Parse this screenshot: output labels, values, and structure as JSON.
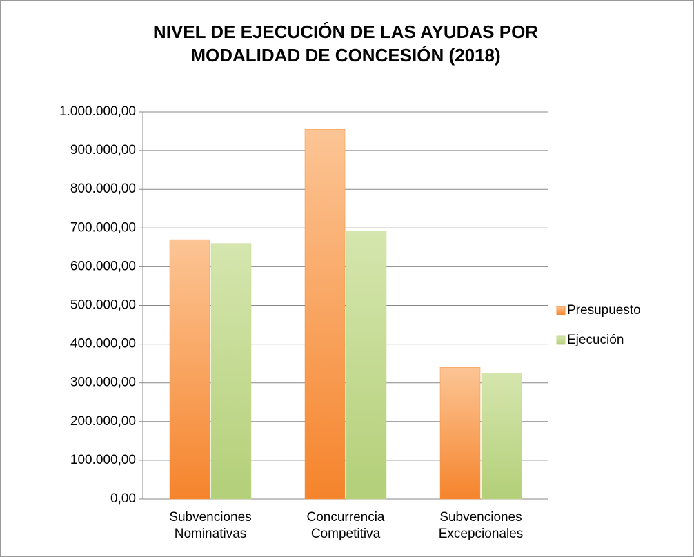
{
  "chart_data": {
    "type": "bar",
    "title": [
      "NIVEL DE EJECUCIÓN DE LAS AYUDAS POR",
      "MODALIDAD DE CONCESIÓN (2018)"
    ],
    "categories": [
      "Subvenciones Nominativas",
      "Concurrencia Competitiva",
      "Subvenciones Excepcionales"
    ],
    "series": [
      {
        "name": "Presupuesto",
        "color": "#f7923f",
        "values": [
          670000,
          955000,
          340000
        ]
      },
      {
        "name": "Ejecución",
        "color": "#c3d98e",
        "values": [
          660000,
          692000,
          325000
        ]
      }
    ],
    "ylim": [
      0,
      1000000
    ],
    "yticks": [
      {
        "value": 0,
        "label": "0,00"
      },
      {
        "value": 100000,
        "label": "100.000,00"
      },
      {
        "value": 200000,
        "label": "200.000,00"
      },
      {
        "value": 300000,
        "label": "300.000,00"
      },
      {
        "value": 400000,
        "label": "400.000,00"
      },
      {
        "value": 500000,
        "label": "500.000,00"
      },
      {
        "value": 600000,
        "label": "600.000,00"
      },
      {
        "value": 700000,
        "label": "700.000,00"
      },
      {
        "value": 800000,
        "label": "800.000,00"
      },
      {
        "value": 900000,
        "label": "900.000,00"
      },
      {
        "value": 1000000,
        "label": "1.000.000,00"
      }
    ],
    "grid": true,
    "legend": "right"
  }
}
